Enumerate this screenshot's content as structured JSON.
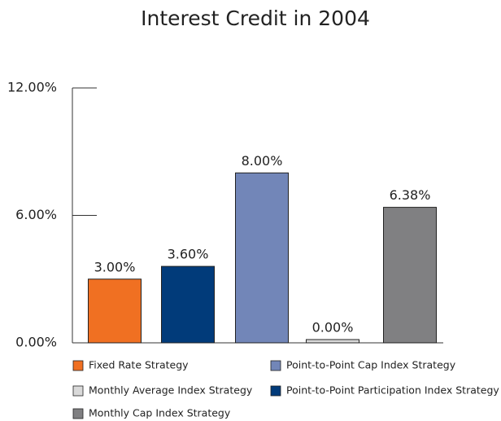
{
  "chart_data": {
    "type": "bar",
    "title": "Interest Credit in 2004",
    "categories": [
      "Fixed Rate Strategy",
      "Point-to-Point Participation Index Strategy",
      "Point-to-Point Cap Index Strategy",
      "Monthly Average Index Strategy",
      "Monthly Cap Index Strategy"
    ],
    "values": [
      3.0,
      3.6,
      8.0,
      0.0,
      6.38
    ],
    "value_labels": [
      "3.00%",
      "3.60%",
      "8.00%",
      "0.00%",
      "6.38%"
    ],
    "colors": [
      "#f07022",
      "#013b7a",
      "#7286b8",
      "#d9d9d9",
      "#808082"
    ],
    "ylim": [
      0,
      12
    ],
    "yticks": [
      {
        "value": 0,
        "label": "0.00%"
      },
      {
        "value": 6,
        "label": "6.00%"
      },
      {
        "value": 12,
        "label": "12.00%"
      }
    ]
  }
}
